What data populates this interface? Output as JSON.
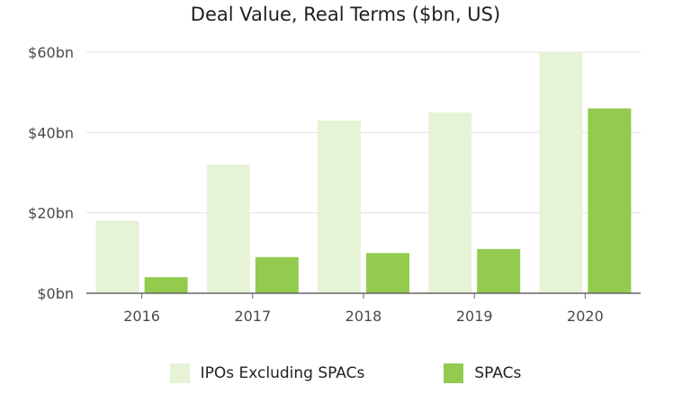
{
  "chart_data": {
    "type": "bar",
    "title": "Deal Value, Real Terms ($bn, US)",
    "categories": [
      "2016",
      "2017",
      "2018",
      "2019",
      "2020"
    ],
    "series": [
      {
        "name": "IPOs Excluding SPACs",
        "values": [
          18,
          32,
          43,
          45,
          60
        ],
        "color": "#e6f3d6"
      },
      {
        "name": "SPACs",
        "values": [
          4,
          9,
          10,
          11,
          46
        ],
        "color": "#92cb4e"
      }
    ],
    "ylim": [
      0,
      60
    ],
    "yticks": [
      0,
      20,
      40,
      60
    ],
    "ytick_labels": [
      "$0bn",
      "$20bn",
      "$40bn",
      "$60bn"
    ],
    "grid": true,
    "legend": "bottom",
    "axis_color": "#666666",
    "grid_color": "#e3e3e3"
  }
}
